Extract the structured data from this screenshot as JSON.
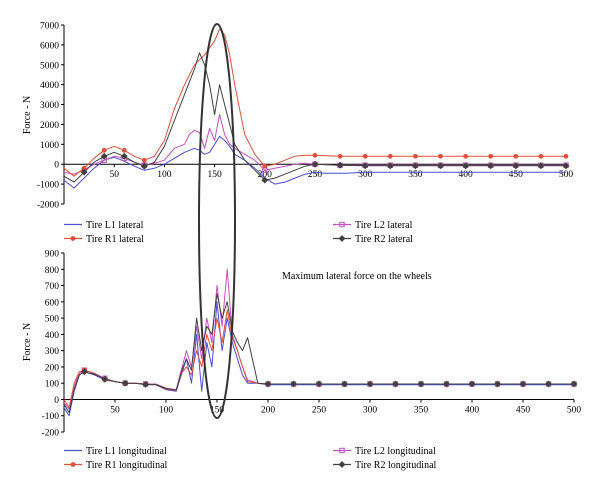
{
  "colors": {
    "L1": "#4a4fd0",
    "R1": "#e0503c",
    "L2": "#c050c0",
    "R2": "#404040",
    "ellipse": "#333333"
  },
  "annotation": "Maximum lateral force on the wheels",
  "chart_data": [
    {
      "type": "line",
      "ylabel": "Force - N",
      "xlim": [
        0,
        500
      ],
      "ylim": [
        -2000,
        7000
      ],
      "xticks": [
        50,
        100,
        150,
        200,
        250,
        300,
        350,
        400,
        450,
        500
      ],
      "yticks": [
        -2000,
        -1000,
        0,
        1000,
        2000,
        3000,
        4000,
        5000,
        6000,
        7000
      ],
      "legend": [
        "Tire L1 lateral",
        "Tire L2 lateral",
        "Tire R1 lateral",
        "Tire R2 lateral"
      ],
      "series": [
        {
          "name": "Tire L1 lateral",
          "color_key": "L1",
          "marker": "none",
          "x": [
            0,
            10,
            20,
            30,
            40,
            50,
            60,
            70,
            80,
            90,
            100,
            110,
            120,
            130,
            135,
            140,
            145,
            150,
            155,
            160,
            165,
            170,
            180,
            190,
            200,
            210,
            220,
            230,
            240,
            250,
            260,
            280,
            300,
            350,
            400,
            450,
            500
          ],
          "y": [
            -800,
            -1200,
            -700,
            -200,
            200,
            350,
            150,
            -100,
            -300,
            -200,
            0,
            300,
            600,
            800,
            700,
            500,
            600,
            1000,
            1400,
            1200,
            900,
            500,
            200,
            -200,
            -700,
            -1000,
            -900,
            -700,
            -500,
            -400,
            -450,
            -450,
            -400,
            -400,
            -400,
            -400,
            -400
          ]
        },
        {
          "name": "Tire L2 lateral",
          "color_key": "L2",
          "marker": "square",
          "x": [
            0,
            10,
            20,
            30,
            40,
            50,
            60,
            70,
            80,
            90,
            100,
            110,
            120,
            125,
            130,
            135,
            140,
            145,
            150,
            155,
            160,
            165,
            170,
            180,
            190,
            200,
            210,
            220,
            230,
            240,
            250,
            275,
            300,
            325,
            350,
            375,
            400,
            425,
            450,
            475,
            500
          ],
          "y": [
            -400,
            -500,
            -300,
            0,
            200,
            400,
            300,
            100,
            -50,
            50,
            200,
            800,
            1000,
            1500,
            1700,
            1600,
            800,
            1800,
            1200,
            2500,
            1500,
            1000,
            800,
            500,
            200,
            -300,
            -200,
            -100,
            0,
            50,
            0,
            -50,
            -50,
            -50,
            -50,
            -50,
            -50,
            -50,
            -50,
            -50,
            -50
          ]
        },
        {
          "name": "Tire R1 lateral",
          "color_key": "R1",
          "marker": "circle",
          "x": [
            0,
            10,
            20,
            30,
            40,
            50,
            60,
            70,
            80,
            90,
            100,
            110,
            120,
            130,
            140,
            150,
            155,
            160,
            165,
            170,
            180,
            190,
            200,
            210,
            220,
            230,
            240,
            250,
            275,
            300,
            325,
            350,
            375,
            400,
            425,
            450,
            475,
            500
          ],
          "y": [
            -200,
            -600,
            -200,
            300,
            700,
            900,
            700,
            400,
            200,
            400,
            1200,
            2800,
            4000,
            5000,
            5500,
            6200,
            6800,
            6500,
            5500,
            4000,
            1500,
            500,
            -100,
            0,
            200,
            400,
            450,
            450,
            400,
            400,
            400,
            400,
            400,
            400,
            400,
            400,
            400,
            400
          ]
        },
        {
          "name": "Tire R2 lateral",
          "color_key": "R2",
          "marker": "diamond",
          "x": [
            0,
            10,
            20,
            30,
            40,
            50,
            60,
            70,
            80,
            90,
            100,
            110,
            120,
            130,
            135,
            140,
            145,
            150,
            155,
            160,
            165,
            170,
            180,
            190,
            200,
            210,
            220,
            230,
            240,
            250,
            275,
            300,
            325,
            350,
            375,
            400,
            425,
            450,
            475,
            500
          ],
          "y": [
            -600,
            -900,
            -400,
            100,
            400,
            600,
            400,
            100,
            -100,
            100,
            900,
            2200,
            3500,
            4800,
            5600,
            5000,
            4000,
            2500,
            4000,
            3000,
            2000,
            1000,
            200,
            -300,
            -800,
            -700,
            -500,
            -300,
            -100,
            0,
            -50,
            -80,
            -80,
            -80,
            -80,
            -80,
            -80,
            -80,
            -80,
            -80
          ]
        }
      ]
    },
    {
      "type": "line",
      "ylabel": "Force - N",
      "xlim": [
        0,
        500
      ],
      "ylim": [
        -200,
        900
      ],
      "xticks": [
        50,
        100,
        150,
        200,
        250,
        300,
        350,
        400,
        450,
        500
      ],
      "yticks": [
        -200,
        -100,
        0,
        100,
        200,
        300,
        400,
        500,
        600,
        700,
        800,
        900
      ],
      "legend": [
        "Tire L1 longitudinal",
        "Tire L2 longitudinal",
        "Tire R1 longitudinal",
        "Tire R2 longitudinal"
      ],
      "series": [
        {
          "name": "Tire L1 longitudinal",
          "color_key": "L1",
          "marker": "none",
          "x": [
            0,
            5,
            10,
            15,
            20,
            30,
            40,
            50,
            60,
            70,
            80,
            90,
            100,
            110,
            115,
            120,
            125,
            130,
            135,
            140,
            145,
            150,
            155,
            160,
            165,
            170,
            175,
            180,
            190,
            200,
            250,
            300,
            350,
            400,
            450,
            500
          ],
          "y": [
            -50,
            -100,
            50,
            150,
            170,
            150,
            120,
            110,
            100,
            100,
            90,
            90,
            60,
            50,
            150,
            250,
            100,
            400,
            50,
            350,
            200,
            600,
            300,
            500,
            350,
            250,
            150,
            100,
            100,
            90,
            90,
            90,
            90,
            90,
            90,
            90
          ]
        },
        {
          "name": "Tire L2 longitudinal",
          "color_key": "L2",
          "marker": "square",
          "x": [
            0,
            5,
            10,
            15,
            20,
            30,
            40,
            50,
            60,
            70,
            80,
            90,
            100,
            110,
            115,
            120,
            125,
            130,
            135,
            140,
            145,
            150,
            155,
            160,
            165,
            170,
            175,
            180,
            190,
            200,
            225,
            250,
            275,
            300,
            325,
            350,
            375,
            400,
            425,
            450,
            475,
            500
          ],
          "y": [
            -20,
            -60,
            80,
            160,
            180,
            160,
            130,
            110,
            100,
            100,
            95,
            95,
            70,
            60,
            180,
            300,
            200,
            450,
            250,
            500,
            350,
            700,
            450,
            800,
            400,
            300,
            200,
            120,
            100,
            95,
            95,
            95,
            95,
            95,
            95,
            95,
            95,
            95,
            95,
            95,
            95,
            95
          ]
        },
        {
          "name": "Tire R1 longitudinal",
          "color_key": "R1",
          "marker": "circle",
          "x": [
            0,
            5,
            10,
            15,
            20,
            30,
            40,
            50,
            60,
            70,
            80,
            90,
            100,
            110,
            115,
            120,
            125,
            130,
            135,
            140,
            145,
            150,
            155,
            160,
            165,
            170,
            175,
            180,
            190,
            200,
            225,
            250,
            275,
            300,
            325,
            350,
            375,
            400,
            425,
            450,
            475,
            500
          ],
          "y": [
            0,
            -50,
            100,
            170,
            180,
            160,
            120,
            110,
            100,
            100,
            95,
            90,
            65,
            55,
            160,
            200,
            150,
            300,
            200,
            400,
            300,
            500,
            350,
            550,
            380,
            300,
            200,
            110,
            100,
            95,
            95,
            95,
            95,
            95,
            95,
            95,
            95,
            95,
            95,
            95,
            95,
            95
          ]
        },
        {
          "name": "Tire R2 longitudinal",
          "color_key": "R2",
          "marker": "diamond",
          "x": [
            0,
            5,
            10,
            15,
            20,
            30,
            40,
            50,
            60,
            70,
            80,
            90,
            100,
            110,
            115,
            120,
            125,
            130,
            135,
            140,
            145,
            150,
            155,
            160,
            165,
            170,
            175,
            180,
            190,
            200,
            225,
            250,
            275,
            300,
            325,
            350,
            375,
            400,
            425,
            450,
            475,
            500
          ],
          "y": [
            -30,
            -80,
            60,
            150,
            170,
            155,
            125,
            110,
            100,
            100,
            92,
            92,
            68,
            58,
            170,
            250,
            180,
            500,
            300,
            450,
            400,
            650,
            500,
            600,
            420,
            350,
            300,
            380,
            100,
            95,
            95,
            95,
            95,
            95,
            95,
            95,
            95,
            95,
            95,
            95,
            95,
            95
          ]
        }
      ]
    }
  ]
}
